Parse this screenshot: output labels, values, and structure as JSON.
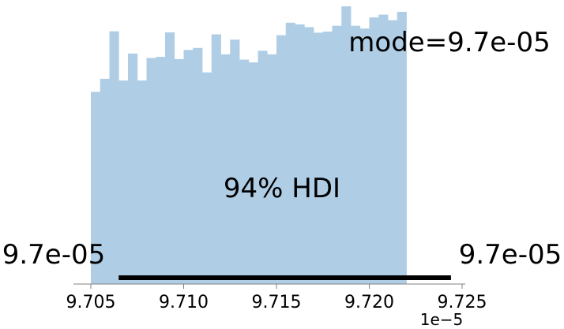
{
  "chart_data": {
    "type": "bar",
    "subtype": "histogram",
    "bar_color": "#afcde4",
    "hdi_line_color": "#000000",
    "axis_color": "#808080",
    "x_range": [
      9.705,
      9.725
    ],
    "x_ticks": [
      "9.705",
      "9.710",
      "9.715",
      "9.720",
      "9.725"
    ],
    "x_tick_values": [
      9.705,
      9.71,
      9.715,
      9.72,
      9.725
    ],
    "x_offset_label": "1e−5",
    "y_range": [
      0,
      1.0
    ],
    "grid": false,
    "bins": {
      "start": 9.705,
      "width": 0.0005,
      "values": [
        0.692,
        0.739,
        0.91,
        0.733,
        0.83,
        0.733,
        0.814,
        0.818,
        0.906,
        0.81,
        0.843,
        0.85,
        0.762,
        0.899,
        0.827,
        0.88,
        0.808,
        0.798,
        0.84,
        0.827,
        0.896,
        0.941,
        0.935,
        0.925,
        0.905,
        0.909,
        0.93,
        1.0,
        0.93,
        0.92,
        0.96,
        0.97,
        0.95,
        0.98
      ]
    },
    "hdi": {
      "label": "94% HDI",
      "lower": 9.7065,
      "upper": 9.7244,
      "lower_label": "9.7e-05",
      "upper_label": "9.7e-05"
    },
    "mode_label": "mode=9.7e-05"
  }
}
